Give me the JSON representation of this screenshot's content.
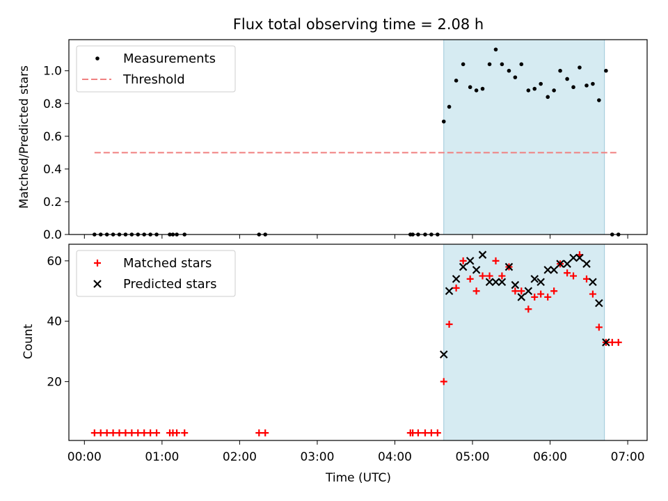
{
  "chart_data": [
    {
      "type": "scatter",
      "title": "Flux total observing time = 2.08 h",
      "ylabel": "Matched/Predicted stars",
      "xlabel": "",
      "xlim_hours": [
        -0.2,
        7.25
      ],
      "ylim": [
        0,
        1.19
      ],
      "yticks": [
        "0.0",
        "0.2",
        "0.4",
        "0.6",
        "0.8",
        "1.0"
      ],
      "legend_position": "top-left",
      "shaded_interval_hours": [
        4.63,
        6.7
      ],
      "series": [
        {
          "name": "Measurements",
          "marker": "dot",
          "color": "#000000",
          "x_hours": [
            0.13,
            0.21,
            0.29,
            0.37,
            0.45,
            0.53,
            0.61,
            0.69,
            0.77,
            0.85,
            0.93,
            1.1,
            1.14,
            1.19,
            1.29,
            2.25,
            2.33,
            4.2,
            4.23,
            4.3,
            4.39,
            4.47,
            4.55,
            4.63,
            4.7,
            4.79,
            4.88,
            4.97,
            5.05,
            5.13,
            5.22,
            5.3,
            5.38,
            5.47,
            5.55,
            5.63,
            5.72,
            5.8,
            5.88,
            5.97,
            6.05,
            6.13,
            6.22,
            6.3,
            6.38,
            6.47,
            6.55,
            6.63,
            6.72,
            6.8,
            6.88
          ],
          "values": [
            0,
            0,
            0,
            0,
            0,
            0,
            0,
            0,
            0,
            0,
            0,
            0,
            0,
            0,
            0,
            0,
            0,
            0,
            0,
            0,
            0,
            0,
            0,
            0.69,
            0.78,
            0.94,
            1.04,
            0.9,
            0.88,
            0.89,
            1.04,
            1.13,
            1.04,
            1.0,
            0.96,
            1.04,
            0.88,
            0.89,
            0.92,
            0.84,
            0.88,
            1.0,
            0.95,
            0.9,
            1.02,
            0.91,
            0.92,
            0.82,
            1.0,
            0,
            0
          ]
        },
        {
          "name": "Threshold",
          "marker": "dashed-line",
          "color": "#f08080",
          "x_hours": [
            0.13,
            6.88
          ],
          "values": [
            0.5,
            0.5
          ]
        }
      ]
    },
    {
      "type": "scatter",
      "title": "",
      "ylabel": "Count",
      "xlabel": "Time (UTC)",
      "xlim_hours": [
        -0.2,
        7.25
      ],
      "ylim": [
        0.5,
        65.5
      ],
      "yticks": [
        "20",
        "40",
        "60"
      ],
      "xticks": [
        "00:00",
        "01:00",
        "02:00",
        "03:00",
        "04:00",
        "05:00",
        "06:00",
        "07:00"
      ],
      "legend_position": "top-left",
      "shaded_interval_hours": [
        4.63,
        6.7
      ],
      "series": [
        {
          "name": "Matched stars",
          "marker": "plus",
          "color": "#ff0000",
          "x_hours": [
            0.13,
            0.21,
            0.29,
            0.37,
            0.45,
            0.53,
            0.61,
            0.69,
            0.77,
            0.85,
            0.93,
            1.1,
            1.14,
            1.19,
            1.29,
            2.25,
            2.33,
            4.2,
            4.23,
            4.3,
            4.39,
            4.47,
            4.55,
            4.63,
            4.7,
            4.79,
            4.88,
            4.97,
            5.05,
            5.13,
            5.22,
            5.3,
            5.38,
            5.47,
            5.55,
            5.63,
            5.72,
            5.8,
            5.88,
            5.97,
            6.05,
            6.13,
            6.22,
            6.3,
            6.38,
            6.47,
            6.55,
            6.63,
            6.72,
            6.8,
            6.88
          ],
          "values": [
            3,
            3,
            3,
            3,
            3,
            3,
            3,
            3,
            3,
            3,
            3,
            3,
            3,
            3,
            3,
            3,
            3,
            3,
            3,
            3,
            3,
            3,
            3,
            20,
            39,
            51,
            60,
            54,
            50,
            55,
            55,
            60,
            55,
            58,
            50,
            50,
            44,
            48,
            49,
            48,
            50,
            59,
            56,
            55,
            62,
            54,
            49,
            38,
            33,
            33,
            33
          ]
        },
        {
          "name": "Predicted stars",
          "marker": "x",
          "color": "#000000",
          "x_hours": [
            4.63,
            4.7,
            4.79,
            4.88,
            4.97,
            5.05,
            5.13,
            5.22,
            5.3,
            5.38,
            5.47,
            5.55,
            5.63,
            5.72,
            5.8,
            5.88,
            5.97,
            6.05,
            6.13,
            6.22,
            6.3,
            6.38,
            6.47,
            6.55,
            6.63,
            6.72
          ],
          "values": [
            29,
            50,
            54,
            58,
            60,
            57,
            62,
            53,
            53,
            53,
            58,
            52,
            48,
            50,
            54,
            53,
            57,
            57,
            59,
            59,
            61,
            61,
            59,
            53,
            46,
            33
          ]
        }
      ]
    }
  ]
}
